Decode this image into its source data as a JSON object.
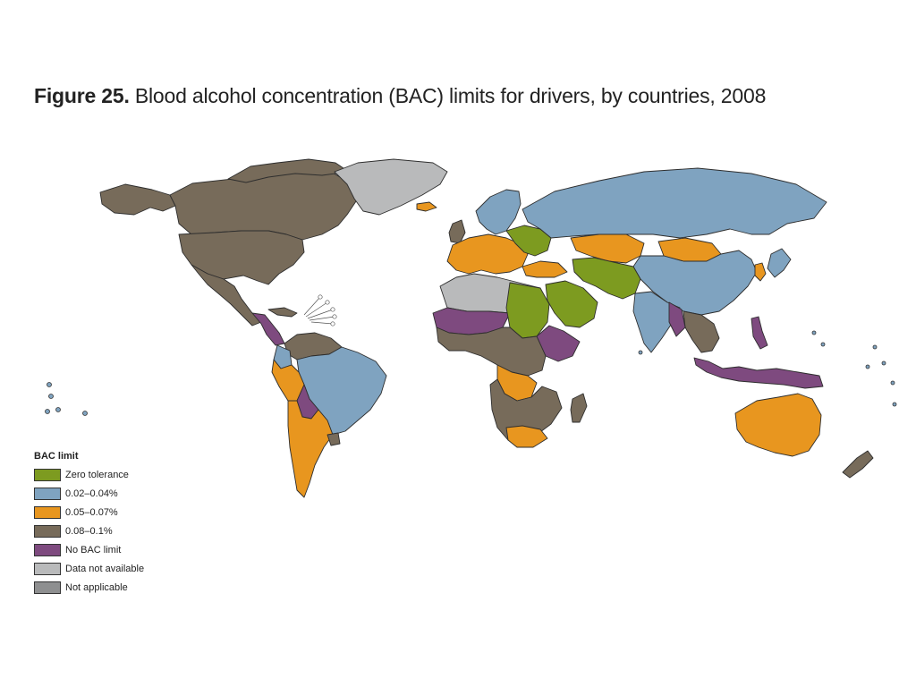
{
  "figure": {
    "number": "Figure 25.",
    "title": "Blood alcohol concentration (BAC) limits for drivers, by countries, 2008"
  },
  "legend": {
    "title": "BAC limit",
    "items": [
      {
        "label": "Zero tolerance",
        "color": "#7d9b20"
      },
      {
        "label": "0.02–0.04%",
        "color": "#7fa3c0"
      },
      {
        "label": "0.05–0.07%",
        "color": "#e8961f"
      },
      {
        "label": "0.08–0.1%",
        "color": "#776b5a"
      },
      {
        "label": "No BAC limit",
        "color": "#7e4a7f"
      },
      {
        "label": "Data not available",
        "color": "#b9babb"
      },
      {
        "label": "Not applicable",
        "color": "#8e8f90"
      }
    ]
  },
  "colors": {
    "zero": "#7d9b20",
    "low": "#7fa3c0",
    "mid": "#e8961f",
    "high": "#776b5a",
    "none": "#7e4a7f",
    "na": "#b9babb",
    "notapp": "#8e8f90"
  }
}
